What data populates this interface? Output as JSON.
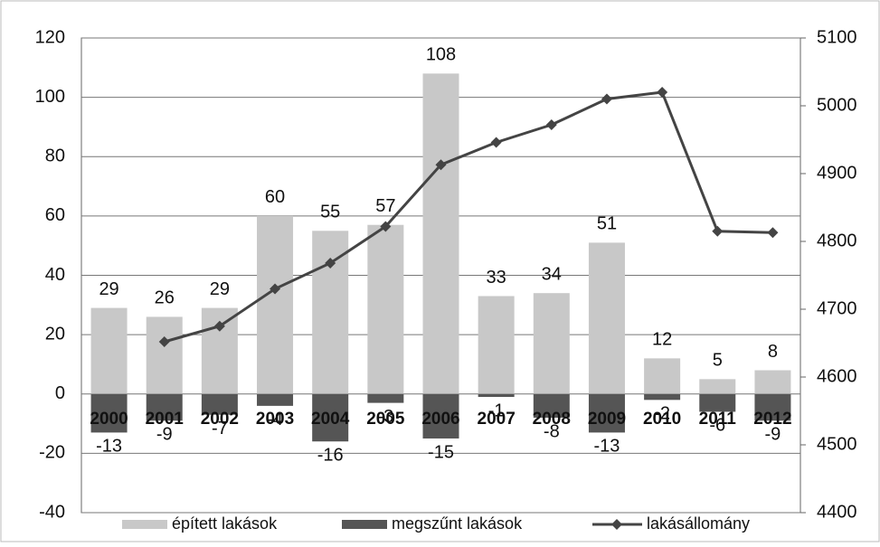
{
  "chart_data": {
    "type": "bar",
    "categories": [
      "2000",
      "2001",
      "2002",
      "2003",
      "2004",
      "2005",
      "2006",
      "2007",
      "2008",
      "2009",
      "2010",
      "2011",
      "2012"
    ],
    "series": [
      {
        "name": "épített lakások",
        "type": "bar",
        "color": "#c8c8c8",
        "values": [
          29,
          26,
          29,
          60,
          55,
          57,
          108,
          33,
          34,
          51,
          12,
          5,
          8
        ]
      },
      {
        "name": "megszűnt lakások",
        "type": "bar",
        "color": "#555555",
        "values": [
          -13,
          -9,
          -7,
          -4,
          -16,
          -3,
          -15,
          -1,
          -8,
          -13,
          -2,
          -6,
          -9
        ]
      },
      {
        "name": "lakásállomány",
        "type": "line",
        "axis": "y2",
        "color": "#444444",
        "values": [
          null,
          4652,
          4675,
          4730,
          4768,
          4822,
          4913,
          4946,
          4972,
          5010,
          5020,
          4815,
          4813
        ]
      }
    ],
    "ylim": [
      -40,
      120
    ],
    "yticks": [
      -40,
      -20,
      0,
      20,
      40,
      60,
      80,
      100,
      120
    ],
    "y2lim": [
      4400,
      5100
    ],
    "y2ticks": [
      4400,
      4500,
      4600,
      4700,
      4800,
      4900,
      5000,
      5100
    ],
    "grid": true,
    "legend": "bottom"
  }
}
